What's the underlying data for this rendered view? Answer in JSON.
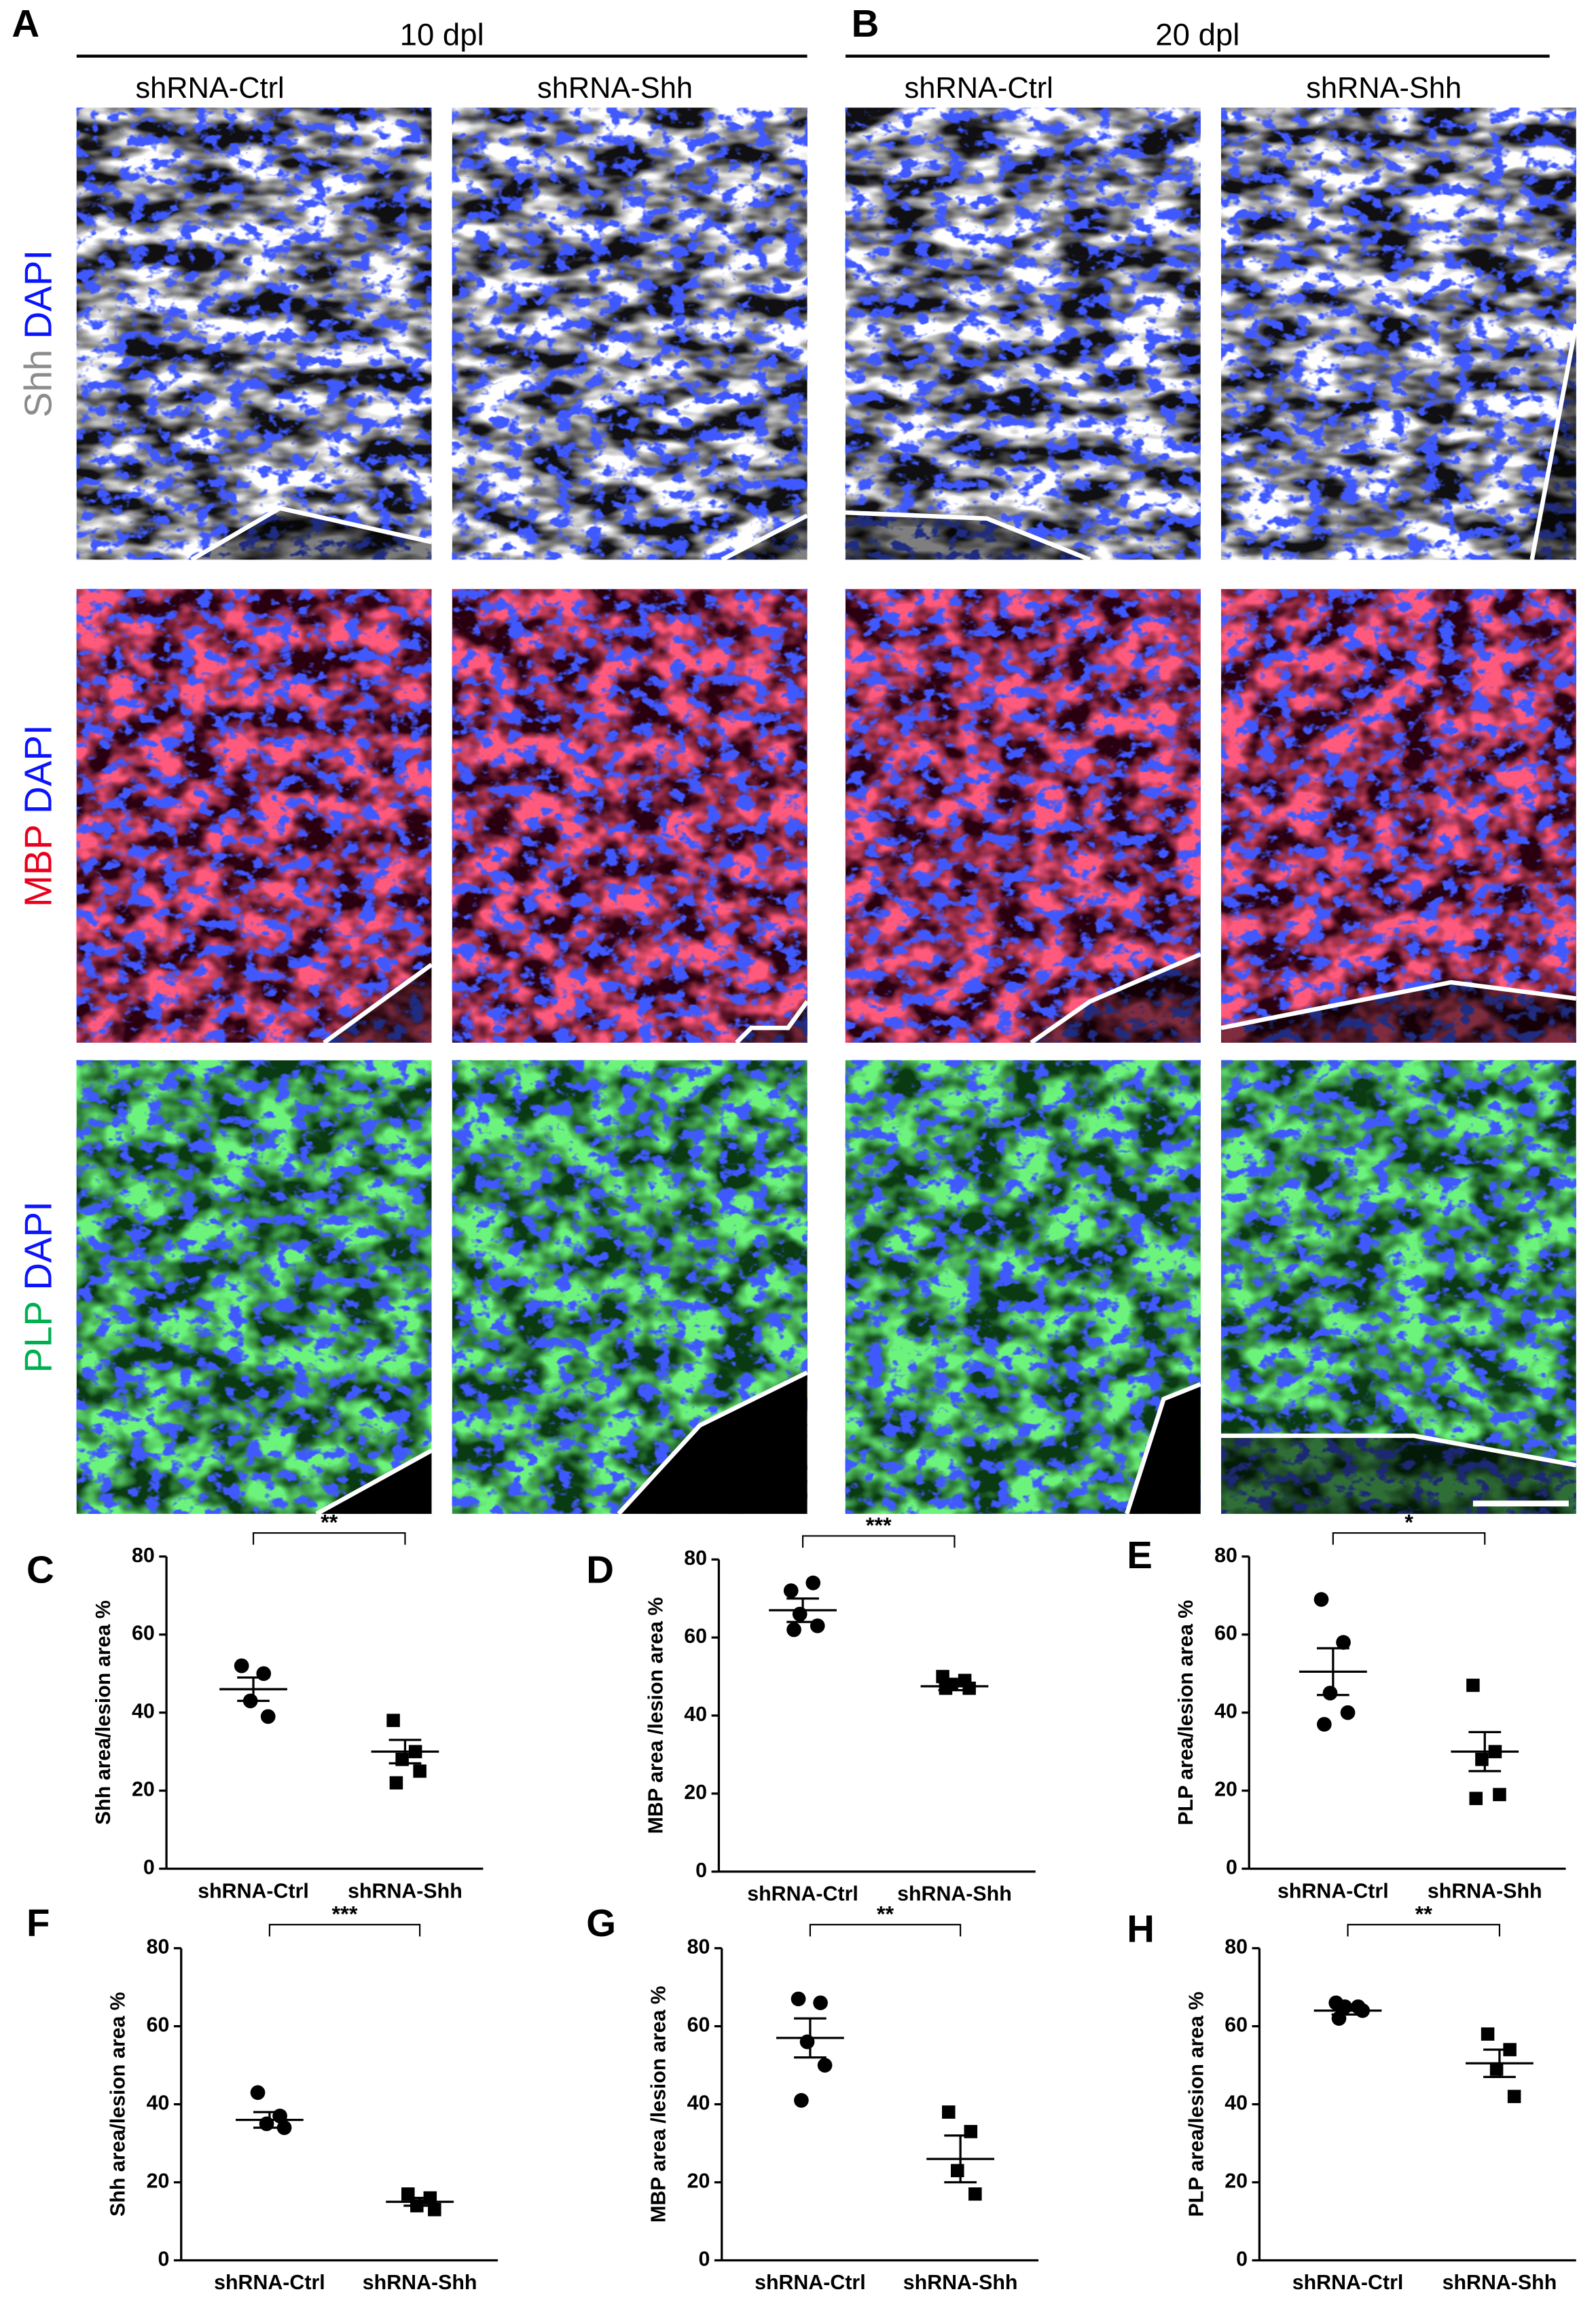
{
  "panels": {
    "top_labels": [
      {
        "letter": "A",
        "title": "10 dpl"
      },
      {
        "letter": "B",
        "title": "20 dpl"
      }
    ],
    "columns": [
      "shRNA-Ctrl",
      "shRNA-Shh",
      "shRNA-Ctrl",
      "shRNA-Shh"
    ],
    "rows": [
      {
        "marker": "Shh",
        "marker_color": "#8c8c8c",
        "stain": "DAPI",
        "stain_color": "#0b14ff"
      },
      {
        "marker": "MBP",
        "marker_color": "#e8001c",
        "stain": "DAPI",
        "stain_color": "#0b14ff"
      },
      {
        "marker": "PLP",
        "marker_color": "#00b050",
        "stain": "DAPI",
        "stain_color": "#0b14ff"
      }
    ]
  },
  "chart_data": [
    {
      "type": "dot",
      "panel": "C",
      "ylabel": "Shh area/lesion area %",
      "categories": [
        "shRNA-Ctrl",
        "shRNA-Shh"
      ],
      "color": "#000000",
      "groups": [
        {
          "marker": "circle",
          "values": [
            52,
            50,
            43,
            39
          ],
          "mean": 46,
          "sem": 3
        },
        {
          "marker": "square",
          "values": [
            38,
            30,
            28,
            25,
            22
          ],
          "mean": 30,
          "sem": 3
        }
      ],
      "significance": "**",
      "ylim": [
        0,
        80
      ],
      "yticks": [
        0,
        20,
        40,
        60,
        80
      ]
    },
    {
      "type": "dot",
      "panel": "D",
      "ylabel": "MBP area /lesion area %",
      "categories": [
        "shRNA-Ctrl",
        "shRNA-Shh"
      ],
      "color": "#000000",
      "groups": [
        {
          "marker": "circle",
          "values": [
            72,
            74,
            66,
            63,
            62
          ],
          "mean": 67,
          "sem": 3
        },
        {
          "marker": "square",
          "values": [
            50,
            49,
            48,
            47,
            47
          ],
          "mean": 47.5,
          "sem": 1
        }
      ],
      "significance": "***",
      "ylim": [
        0,
        80
      ],
      "yticks": [
        0,
        20,
        40,
        60,
        80
      ]
    },
    {
      "type": "dot",
      "panel": "E",
      "ylabel": "PLP area/lesion area %",
      "categories": [
        "shRNA-Ctrl",
        "shRNA-Shh"
      ],
      "color": "#000000",
      "groups": [
        {
          "marker": "circle",
          "values": [
            69,
            58,
            45,
            40,
            37
          ],
          "mean": 50.5,
          "sem": 6
        },
        {
          "marker": "square",
          "values": [
            47,
            30,
            28,
            19,
            18
          ],
          "mean": 30,
          "sem": 5
        }
      ],
      "significance": "*",
      "ylim": [
        0,
        80
      ],
      "yticks": [
        0,
        20,
        40,
        60,
        80
      ]
    },
    {
      "type": "dot",
      "panel": "F",
      "ylabel": "Shh area/lesion area %",
      "categories": [
        "shRNA-Ctrl",
        "shRNA-Shh"
      ],
      "color": "#000000",
      "groups": [
        {
          "marker": "circle",
          "values": [
            43,
            37,
            35,
            34
          ],
          "mean": 36,
          "sem": 2
        },
        {
          "marker": "square",
          "values": [
            17,
            16,
            14,
            13
          ],
          "mean": 15,
          "sem": 1
        }
      ],
      "significance": "***",
      "ylim": [
        0,
        80
      ],
      "yticks": [
        0,
        20,
        40,
        60,
        80
      ]
    },
    {
      "type": "dot",
      "panel": "G",
      "ylabel": "MBP area /lesion area %",
      "categories": [
        "shRNA-Ctrl",
        "shRNA-Shh"
      ],
      "color": "#000000",
      "groups": [
        {
          "marker": "circle",
          "values": [
            67,
            66,
            56,
            50,
            41
          ],
          "mean": 57,
          "sem": 5
        },
        {
          "marker": "square",
          "values": [
            38,
            33,
            23,
            17
          ],
          "mean": 26,
          "sem": 6
        }
      ],
      "significance": "**",
      "ylim": [
        0,
        80
      ],
      "yticks": [
        0,
        20,
        40,
        60,
        80
      ]
    },
    {
      "type": "dot",
      "panel": "H",
      "ylabel": "PLP area/lesion area %",
      "categories": [
        "shRNA-Ctrl",
        "shRNA-Shh"
      ],
      "color": "#000000",
      "groups": [
        {
          "marker": "circle",
          "values": [
            66,
            65,
            65,
            64,
            62
          ],
          "mean": 64,
          "sem": 1
        },
        {
          "marker": "square",
          "values": [
            58,
            54,
            49,
            42
          ],
          "mean": 50.5,
          "sem": 3.5
        }
      ],
      "significance": "**",
      "ylim": [
        0,
        80
      ],
      "yticks": [
        0,
        20,
        40,
        60,
        80
      ]
    }
  ]
}
